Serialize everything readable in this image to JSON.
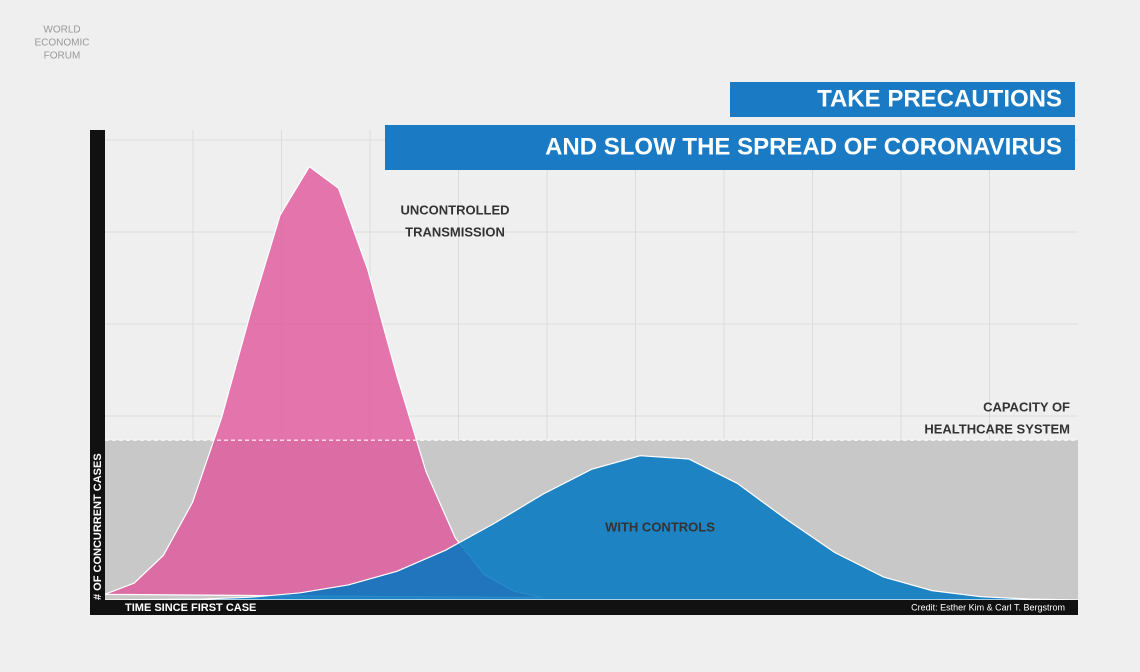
{
  "chart_data": {
    "type": "area",
    "logo": [
      "WORLD",
      "ECONOMIC",
      "FORUM"
    ],
    "title": "TAKE PRECAUTIONS",
    "subtitle": "AND SLOW THE SPREAD OF CORONAVIRUS",
    "x_label": "TIME SINCE FIRST CASE",
    "y_label": "# OF CONCURRENT CASES",
    "credit": "Credit: Esther Kim & Carl T. Bergstrom",
    "xlim": [
      0,
      100
    ],
    "ylim": [
      0,
      100
    ],
    "capacity": 34,
    "capacity_label": [
      "CAPACITY OF",
      "HEALTHCARE SYSTEM"
    ],
    "series": [
      {
        "name": [
          "UNCONTROLLED",
          "TRANSMISSION"
        ],
        "color": "#e0559b",
        "x": [
          0,
          3,
          6,
          9,
          12,
          15,
          18,
          21,
          24,
          27,
          30,
          33,
          36,
          39,
          42,
          45
        ],
        "values": [
          1.2,
          3.6,
          9.5,
          20.8,
          38.9,
          61.4,
          81.9,
          92.2,
          87.6,
          70.3,
          47.7,
          27.3,
          13.2,
          5.4,
          1.9,
          0.5
        ]
      },
      {
        "name": [
          "WITH CONTROLS"
        ],
        "color": "#0077c1",
        "x": [
          0,
          5,
          10,
          15,
          20,
          25,
          30,
          35,
          40,
          45,
          50,
          55,
          60,
          65,
          70,
          75,
          80,
          85,
          90,
          95,
          100
        ],
        "values": [
          0,
          0.1,
          0.2,
          0.6,
          1.5,
          3.2,
          6.1,
          10.6,
          16.3,
          22.5,
          27.8,
          30.7,
          30.0,
          24.8,
          17.2,
          10.1,
          4.9,
          2.0,
          0.7,
          0.2,
          0
        ]
      }
    ]
  }
}
